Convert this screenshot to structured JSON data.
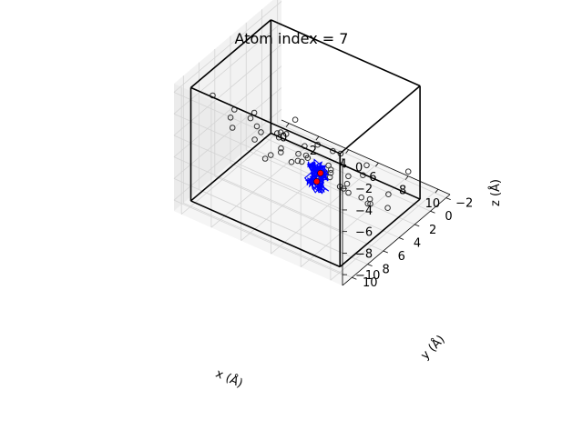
{
  "chart_data": {
    "type": "scatter",
    "title": "Atom index = 7",
    "xlabel": "x (Å)",
    "ylabel": "y (Å)",
    "zlabel": "z (Å)",
    "x_ticks": [
      "0",
      "2",
      "4",
      "6",
      "8",
      "10"
    ],
    "y_ticks": [
      "−2",
      "0",
      "2",
      "4",
      "6",
      "8",
      "10"
    ],
    "z_ticks": [
      "0",
      "−2",
      "−4",
      "−6",
      "−8",
      "−10"
    ],
    "xlim": [
      -0.5,
      10.8
    ],
    "ylim": [
      -2.5,
      11.2
    ],
    "zlim": [
      -11,
      0.8
    ],
    "grid": true,
    "colors": {
      "atoms": "#333333",
      "trajectory": "#0000ff",
      "marker": "#ff0000",
      "box": "#000000"
    },
    "atoms": [
      [
        1.2,
        9.5,
        -0.3
      ],
      [
        2.5,
        9.2,
        -1.0
      ],
      [
        4.0,
        10.0,
        -0.4
      ],
      [
        6.5,
        10.2,
        -0.2
      ],
      [
        8.5,
        10.0,
        -0.1
      ],
      [
        9.6,
        10.4,
        -1.5
      ],
      [
        3.2,
        8.0,
        -1.6
      ],
      [
        5.0,
        8.5,
        -2.1
      ],
      [
        7.2,
        9.0,
        -2.5
      ],
      [
        8.8,
        8.9,
        -3.2
      ],
      [
        1.4,
        7.6,
        -3.4
      ],
      [
        2.9,
        7.1,
        -3.6
      ],
      [
        4.6,
        7.3,
        -3.0
      ],
      [
        6.1,
        7.9,
        -3.7
      ],
      [
        7.7,
        7.1,
        -4.3
      ],
      [
        9.3,
        7.6,
        -4.0
      ],
      [
        1.0,
        6.6,
        -5.2
      ],
      [
        2.6,
        6.0,
        -5.0
      ],
      [
        4.1,
        6.3,
        -5.4
      ],
      [
        5.6,
        6.5,
        -5.6
      ],
      [
        7.0,
        6.2,
        -6.0
      ],
      [
        8.5,
        6.7,
        -6.2
      ],
      [
        9.8,
        6.9,
        -6.1
      ],
      [
        1.7,
        5.1,
        -6.8
      ],
      [
        3.4,
        5.0,
        -7.0
      ],
      [
        5.1,
        4.8,
        -6.6
      ],
      [
        6.8,
        5.2,
        -7.1
      ],
      [
        8.2,
        5.5,
        -7.5
      ],
      [
        9.4,
        5.0,
        -8.1
      ],
      [
        2.2,
        4.0,
        -8.6
      ],
      [
        3.8,
        3.6,
        -8.4
      ],
      [
        5.5,
        3.9,
        -8.9
      ],
      [
        7.0,
        3.4,
        -8.7
      ],
      [
        8.6,
        3.8,
        -9.3
      ],
      [
        1.3,
        3.0,
        -10.1
      ],
      [
        2.8,
        2.5,
        -9.8
      ],
      [
        4.5,
        2.2,
        -10.4
      ],
      [
        6.1,
        2.6,
        -10.0
      ],
      [
        7.8,
        2.0,
        -10.5
      ],
      [
        9.2,
        2.4,
        -10.2
      ],
      [
        3.0,
        1.2,
        -9.0
      ],
      [
        5.2,
        0.8,
        -8.6
      ],
      [
        6.8,
        1.0,
        -9.5
      ],
      [
        8.3,
        0.6,
        -10.6
      ],
      [
        4.0,
        -0.5,
        -9.9
      ],
      [
        6.0,
        -1.0,
        -10.3
      ],
      [
        9.0,
        -0.6,
        -8.8
      ],
      [
        2.0,
        0.5,
        -7.6
      ],
      [
        5.8,
        9.8,
        -1.2
      ]
    ],
    "trajectory_segments": [
      {
        "center": [
          6.9,
          6.6,
          -5.7
        ],
        "spread": 0.35,
        "points": 60
      },
      {
        "center": [
          5.9,
          5.6,
          -6.4
        ],
        "spread": 0.25,
        "points": 30
      },
      {
        "center": [
          5.6,
          4.6,
          -8.6
        ],
        "spread": 0.4,
        "points": 70
      }
    ],
    "markers": [
      [
        6.9,
        6.6,
        -5.8
      ],
      [
        5.6,
        4.6,
        -8.6
      ]
    ]
  }
}
